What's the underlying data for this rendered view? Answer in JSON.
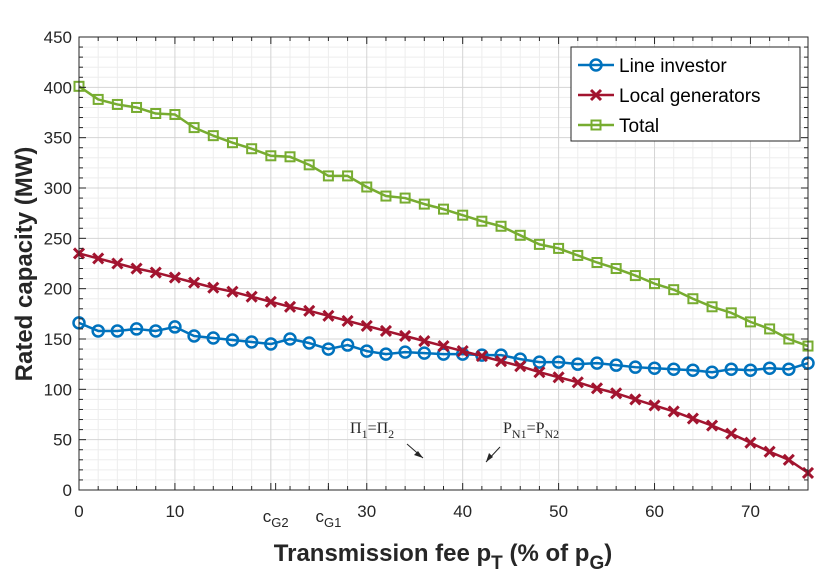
{
  "chart_data": {
    "type": "line",
    "title": "",
    "xlabel": "Transmission fee p",
    "xlabel_sub1": "T",
    "xlabel_mid": " (% of p",
    "xlabel_sub2": "G",
    "xlabel_end": ")",
    "ylabel": "Rated capacity (MW)",
    "xlim": [
      0,
      76
    ],
    "ylim": [
      0,
      450
    ],
    "xticks": [
      0,
      10,
      30,
      40,
      50,
      60,
      70
    ],
    "xtick_labels": [
      "0",
      "10",
      "30",
      "40",
      "50",
      "60",
      "70"
    ],
    "yticks": [
      0,
      50,
      100,
      150,
      200,
      250,
      300,
      350,
      400,
      450
    ],
    "ytick_labels": [
      "0",
      "50",
      "100",
      "150",
      "200",
      "250",
      "300",
      "350",
      "400",
      "450"
    ],
    "grid": true,
    "legend_position": "top-right",
    "special_ticks": [
      {
        "main": "c",
        "sub": "G2",
        "x": 20.5
      },
      {
        "main": "c",
        "sub": "G1",
        "x": 26
      }
    ],
    "x": [
      0,
      2,
      4,
      6,
      8,
      10,
      12,
      14,
      16,
      18,
      20,
      22,
      24,
      26,
      28,
      30,
      32,
      34,
      36,
      38,
      40,
      42,
      44,
      46,
      48,
      50,
      52,
      54,
      56,
      58,
      60,
      62,
      64,
      66,
      68,
      70,
      72,
      74,
      76
    ],
    "series": [
      {
        "name": "Line investor",
        "color": "#0072BD",
        "marker": "circle",
        "values": [
          166,
          158,
          158,
          160,
          158,
          162,
          153,
          151,
          149,
          147,
          145,
          150,
          146,
          140,
          144,
          138,
          135,
          137,
          136,
          135,
          135,
          134,
          134,
          130,
          127,
          127,
          125,
          126,
          124,
          122,
          121,
          120,
          119,
          117,
          120,
          119,
          121,
          120,
          126
        ]
      },
      {
        "name": "Local generators",
        "color": "#A2142F",
        "marker": "x",
        "values": [
          235,
          230,
          225,
          220,
          216,
          211,
          206,
          201,
          197,
          192,
          187,
          182,
          178,
          173,
          168,
          163,
          158,
          153,
          148,
          143,
          138,
          133,
          128,
          123,
          117,
          112,
          107,
          101,
          96,
          90,
          84,
          78,
          71,
          64,
          56,
          47,
          38,
          30,
          17
        ]
      },
      {
        "name": "Total",
        "color": "#77AC30",
        "marker": "square",
        "values": [
          401,
          388,
          383,
          380,
          374,
          373,
          360,
          352,
          345,
          339,
          332,
          331,
          323,
          312,
          312,
          301,
          292,
          290,
          284,
          279,
          273,
          267,
          262,
          253,
          244,
          240,
          233,
          226,
          220,
          213,
          205,
          199,
          190,
          182,
          176,
          167,
          160,
          150,
          143
        ]
      }
    ],
    "annotations": [
      {
        "main1": "Π",
        "sub1": "1",
        "eq": "=Π",
        "sub2": "2"
      },
      {
        "main1": "P",
        "sub1": "N1",
        "eq": "=P",
        "sub2": "N2"
      }
    ]
  }
}
